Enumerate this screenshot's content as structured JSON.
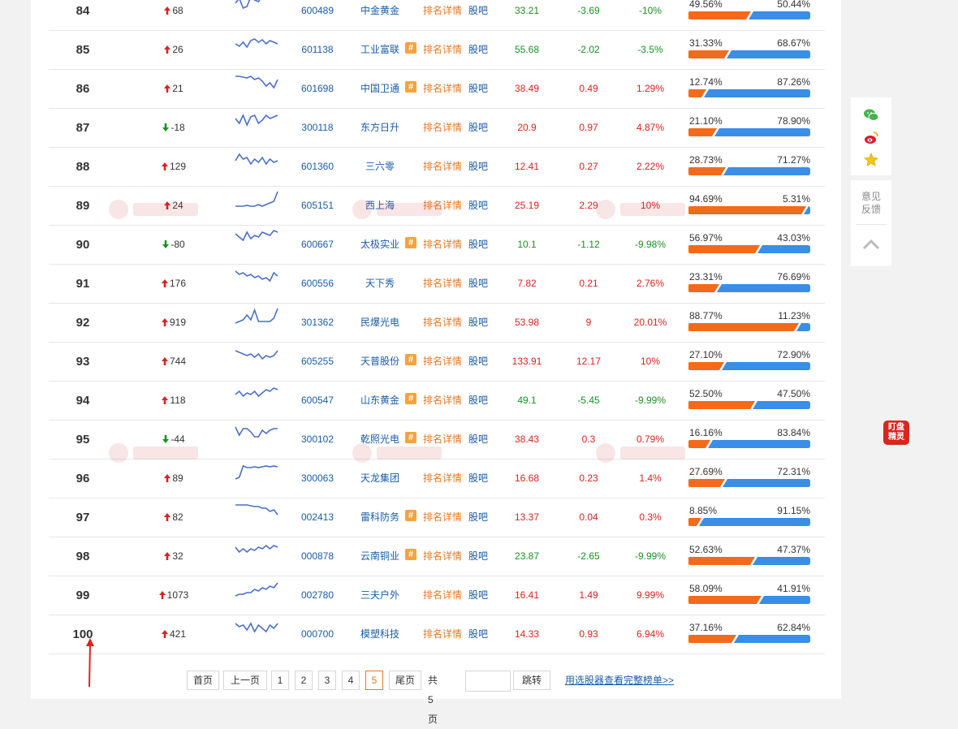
{
  "rows": [
    {
      "rank": "84",
      "change": "68",
      "dir": "up",
      "spark": [
        10,
        4,
        16,
        14,
        2,
        6,
        8,
        1,
        0,
        2,
        1,
        2
      ],
      "code": "600489",
      "name": "中金黄金",
      "has_hash": false,
      "detail": "排名详情",
      "bar": "股吧",
      "price": "33.21",
      "price_color": "green",
      "change_amt": "-3.69",
      "change_amt_color": "green",
      "change_pct": "-10%",
      "change_pct_color": "green",
      "buy_pct": "49.56%",
      "sell_pct": "50.44%",
      "buy_frac": 0.4956
    },
    {
      "rank": "85",
      "change": "26",
      "dir": "up",
      "spark": [
        12,
        15,
        10,
        16,
        8,
        6,
        10,
        7,
        12,
        8,
        10,
        12
      ],
      "code": "601138",
      "name": "工业富联",
      "has_hash": true,
      "detail": "排名详情",
      "bar": "股吧",
      "price": "55.68",
      "price_color": "green",
      "change_amt": "-2.02",
      "change_amt_color": "green",
      "change_pct": "-3.5%",
      "change_pct_color": "green",
      "buy_pct": "31.33%",
      "sell_pct": "68.67%",
      "buy_frac": 0.3133
    },
    {
      "rank": "86",
      "change": "21",
      "dir": "up",
      "spark": [
        4,
        4,
        5,
        6,
        4,
        8,
        6,
        10,
        16,
        12,
        18,
        8
      ],
      "code": "601698",
      "name": "中国卫通",
      "has_hash": true,
      "detail": "排名详情",
      "bar": "股吧",
      "price": "38.49",
      "price_color": "red",
      "change_amt": "0.49",
      "change_amt_color": "red",
      "change_pct": "1.29%",
      "change_pct_color": "red",
      "buy_pct": "12.74%",
      "sell_pct": "87.26%",
      "buy_frac": 0.1274
    },
    {
      "rank": "87",
      "change": "-18",
      "dir": "down",
      "spark": [
        8,
        14,
        4,
        16,
        6,
        4,
        14,
        10,
        4,
        8,
        6,
        4
      ],
      "code": "300118",
      "name": "东方日升",
      "has_hash": false,
      "detail": "排名详情",
      "bar": "股吧",
      "price": "20.9",
      "price_color": "red",
      "change_amt": "0.97",
      "change_amt_color": "red",
      "change_pct": "4.87%",
      "change_pct_color": "red",
      "buy_pct": "21.10%",
      "sell_pct": "78.90%",
      "buy_frac": 0.211
    },
    {
      "rank": "88",
      "change": "129",
      "dir": "up",
      "spark": [
        12,
        4,
        10,
        8,
        16,
        10,
        14,
        8,
        16,
        10,
        14,
        12
      ],
      "code": "601360",
      "name": "三六零",
      "has_hash": false,
      "detail": "排名详情",
      "bar": "股吧",
      "price": "12.41",
      "price_color": "red",
      "change_amt": "0.27",
      "change_amt_color": "red",
      "change_pct": "2.22%",
      "change_pct_color": "red",
      "buy_pct": "28.73%",
      "sell_pct": "71.27%",
      "buy_frac": 0.2873
    },
    {
      "rank": "89",
      "change": "24",
      "dir": "up",
      "spark": [
        20,
        20,
        20,
        19,
        20,
        20,
        18,
        20,
        18,
        16,
        14,
        2
      ],
      "code": "605151",
      "name": "西上海",
      "has_hash": false,
      "detail": "排名详情",
      "bar": "股吧",
      "price": "25.19",
      "price_color": "red",
      "change_amt": "2.29",
      "change_amt_color": "red",
      "change_pct": "10%",
      "change_pct_color": "red",
      "buy_pct": "94.69%",
      "sell_pct": "5.31%",
      "buy_frac": 0.9469
    },
    {
      "rank": "90",
      "change": "-80",
      "dir": "down",
      "spark": [
        6,
        10,
        14,
        4,
        12,
        8,
        10,
        4,
        6,
        8,
        2,
        4
      ],
      "code": "600667",
      "name": "太极实业",
      "has_hash": true,
      "detail": "排名详情",
      "bar": "股吧",
      "price": "10.1",
      "price_color": "green",
      "change_amt": "-1.12",
      "change_amt_color": "green",
      "change_pct": "-9.98%",
      "change_pct_color": "green",
      "buy_pct": "56.97%",
      "sell_pct": "43.03%",
      "buy_frac": 0.5697
    },
    {
      "rank": "91",
      "change": "176",
      "dir": "up",
      "spark": [
        4,
        8,
        6,
        10,
        8,
        12,
        10,
        14,
        12,
        16,
        6,
        10
      ],
      "code": "600556",
      "name": "天下秀",
      "has_hash": false,
      "detail": "排名详情",
      "bar": "股吧",
      "price": "7.82",
      "price_color": "red",
      "change_amt": "0.21",
      "change_amt_color": "red",
      "change_pct": "2.76%",
      "change_pct_color": "red",
      "buy_pct": "23.31%",
      "sell_pct": "76.69%",
      "buy_frac": 0.2331
    },
    {
      "rank": "92",
      "change": "919",
      "dir": "up",
      "spark": [
        20,
        18,
        16,
        10,
        16,
        4,
        18,
        18,
        18,
        18,
        14,
        2
      ],
      "code": "301362",
      "name": "民爆光电",
      "has_hash": false,
      "detail": "排名详情",
      "bar": "股吧",
      "price": "53.98",
      "price_color": "red",
      "change_amt": "9",
      "change_amt_color": "red",
      "change_pct": "20.01%",
      "change_pct_color": "red",
      "buy_pct": "88.77%",
      "sell_pct": "11.23%",
      "buy_frac": 0.8877
    },
    {
      "rank": "93",
      "change": "744",
      "dir": "up",
      "spark": [
        6,
        8,
        10,
        12,
        10,
        14,
        10,
        16,
        12,
        14,
        12,
        6
      ],
      "code": "605255",
      "name": "天普股份",
      "has_hash": true,
      "detail": "排名详情",
      "bar": "股吧",
      "price": "133.91",
      "price_color": "red",
      "change_amt": "12.17",
      "change_amt_color": "red",
      "change_pct": "10%",
      "change_pct_color": "red",
      "buy_pct": "27.10%",
      "sell_pct": "72.90%",
      "buy_frac": 0.271
    },
    {
      "rank": "94",
      "change": "118",
      "dir": "up",
      "spark": [
        12,
        8,
        14,
        10,
        12,
        8,
        14,
        10,
        6,
        8,
        4,
        6
      ],
      "code": "600547",
      "name": "山东黄金",
      "has_hash": true,
      "detail": "排名详情",
      "bar": "股吧",
      "price": "49.1",
      "price_color": "green",
      "change_amt": "-5.45",
      "change_amt_color": "green",
      "change_pct": "-9.99%",
      "change_pct_color": "green",
      "buy_pct": "52.50%",
      "sell_pct": "47.50%",
      "buy_frac": 0.525
    },
    {
      "rank": "95",
      "change": "-44",
      "dir": "down",
      "spark": [
        4,
        14,
        6,
        6,
        10,
        16,
        16,
        8,
        12,
        8,
        6,
        6
      ],
      "code": "300102",
      "name": "乾照光电",
      "has_hash": true,
      "detail": "排名详情",
      "bar": "股吧",
      "price": "38.43",
      "price_color": "red",
      "change_amt": "0.3",
      "change_amt_color": "red",
      "change_pct": "0.79%",
      "change_pct_color": "red",
      "buy_pct": "16.16%",
      "sell_pct": "83.84%",
      "buy_frac": 0.1616
    },
    {
      "rank": "96",
      "change": "89",
      "dir": "up",
      "spark": [
        20,
        18,
        4,
        6,
        6,
        5,
        6,
        5,
        4,
        5,
        4,
        5
      ],
      "code": "300063",
      "name": "天龙集团",
      "has_hash": false,
      "detail": "排名详情",
      "bar": "股吧",
      "price": "16.68",
      "price_color": "red",
      "change_amt": "0.23",
      "change_amt_color": "red",
      "change_pct": "1.4%",
      "change_pct_color": "red",
      "buy_pct": "27.69%",
      "sell_pct": "72.31%",
      "buy_frac": 0.2769
    },
    {
      "rank": "97",
      "change": "82",
      "dir": "up",
      "spark": [
        4,
        4,
        4,
        4,
        5,
        6,
        6,
        8,
        8,
        12,
        10,
        16
      ],
      "code": "002413",
      "name": "雷科防务",
      "has_hash": true,
      "detail": "排名详情",
      "bar": "股吧",
      "price": "13.37",
      "price_color": "red",
      "change_amt": "0.04",
      "change_amt_color": "red",
      "change_pct": "0.3%",
      "change_pct_color": "red",
      "buy_pct": "8.85%",
      "sell_pct": "91.15%",
      "buy_frac": 0.0885
    },
    {
      "rank": "98",
      "change": "32",
      "dir": "up",
      "spark": [
        8,
        14,
        10,
        14,
        10,
        12,
        8,
        10,
        6,
        10,
        6,
        8
      ],
      "code": "000878",
      "name": "云南铜业",
      "has_hash": true,
      "detail": "排名详情",
      "bar": "股吧",
      "price": "23.87",
      "price_color": "green",
      "change_amt": "-2.65",
      "change_amt_color": "green",
      "change_pct": "-9.99%",
      "change_pct_color": "green",
      "buy_pct": "52.63%",
      "sell_pct": "47.37%",
      "buy_frac": 0.5263
    },
    {
      "rank": "99",
      "change": "1073",
      "dir": "up",
      "spark": [
        20,
        18,
        18,
        16,
        16,
        12,
        14,
        10,
        12,
        8,
        10,
        4
      ],
      "code": "002780",
      "name": "三夫户外",
      "has_hash": false,
      "detail": "排名详情",
      "bar": "股吧",
      "price": "16.41",
      "price_color": "red",
      "change_amt": "1.49",
      "change_amt_color": "red",
      "change_pct": "9.99%",
      "change_pct_color": "red",
      "buy_pct": "58.09%",
      "sell_pct": "41.91%",
      "buy_frac": 0.5809
    },
    {
      "rank": "100",
      "change": "421",
      "dir": "up",
      "spark": [
        6,
        10,
        8,
        14,
        6,
        16,
        8,
        12,
        16,
        8,
        12,
        6
      ],
      "code": "000700",
      "name": "模塑科技",
      "has_hash": false,
      "detail": "排名详情",
      "bar": "股吧",
      "price": "14.33",
      "price_color": "red",
      "change_amt": "0.93",
      "change_amt_color": "red",
      "change_pct": "6.94%",
      "change_pct_color": "red",
      "buy_pct": "37.16%",
      "sell_pct": "62.84%",
      "buy_frac": 0.3716
    }
  ],
  "pager": {
    "first": "首页",
    "prev": "上一页",
    "pages": [
      "1",
      "2",
      "3",
      "4",
      "5"
    ],
    "active_page": "5",
    "last": "尾页",
    "total": "共5页",
    "jump": "跳转",
    "jump_value": "",
    "full_list_link": "用选股器查看完整榜单>>"
  },
  "sidebar": {
    "feedback_line1": "意见",
    "feedback_line2": "反馈"
  },
  "dingpan": {
    "line1": "盯盘",
    "line2": "精灵"
  },
  "colors": {
    "up": "#e02020",
    "down": "#19911f",
    "buy": "#f26a1b",
    "sell": "#3a8ee6",
    "link": "#1a5ca8",
    "detail": "#e87722"
  }
}
